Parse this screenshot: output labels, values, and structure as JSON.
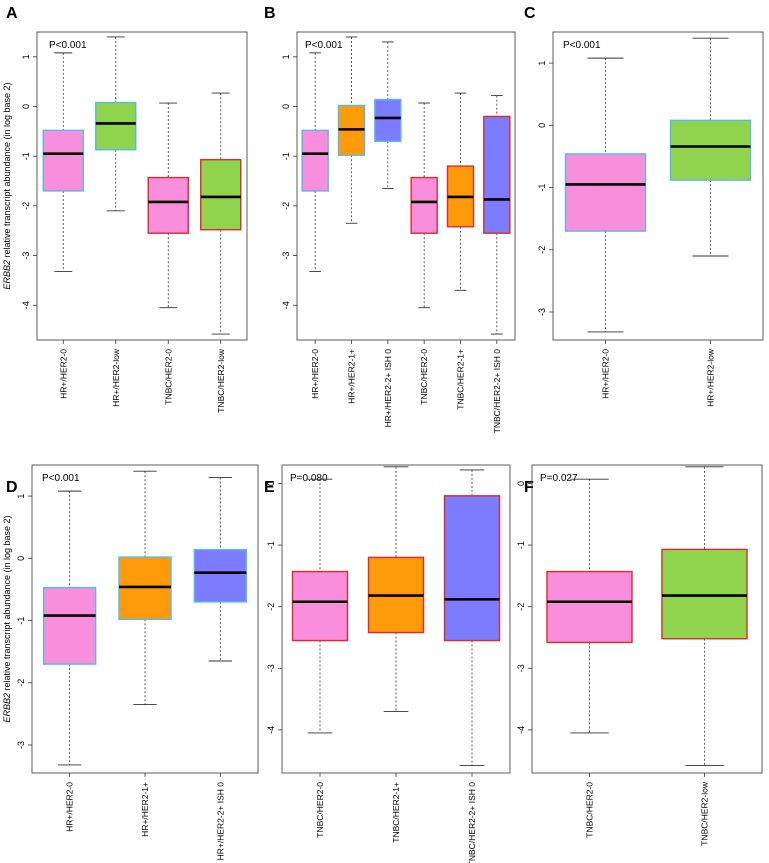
{
  "figure": {
    "ylabel_italic": "ERBB2",
    "ylabel_rest": " relative transcript abundance  (in log base 2)"
  },
  "chart_data": [
    {
      "type": "boxplot",
      "panel": "A",
      "pvalue": "P<0.001",
      "ylim": [
        -4.7,
        1.5
      ],
      "yticks": [
        1,
        0,
        -1,
        -2,
        -3,
        -4
      ],
      "categories": [
        "HR+/HER2-0",
        "HR+/HER2-low",
        "TNBC/HER2-0",
        "TNBC/HER2-low"
      ],
      "boxes": [
        {
          "min": -3.32,
          "q1": -1.7,
          "median": -0.95,
          "q3": -0.48,
          "max": 1.08,
          "fill": "#f98fdc",
          "border": "#56b8ec"
        },
        {
          "min": -2.1,
          "q1": -0.87,
          "median": -0.34,
          "q3": 0.08,
          "max": 1.4,
          "fill": "#8fd44c",
          "border": "#56b8ec"
        },
        {
          "min": -4.05,
          "q1": -2.55,
          "median": -1.92,
          "q3": -1.43,
          "max": 0.07,
          "fill": "#f98fdc",
          "border": "#e0292b"
        },
        {
          "min": -4.58,
          "q1": -2.48,
          "median": -1.82,
          "q3": -1.07,
          "max": 0.27,
          "fill": "#8fd44c",
          "border": "#e0292b"
        }
      ]
    },
    {
      "type": "boxplot",
      "panel": "B",
      "pvalue": "P<0.001",
      "ylim": [
        -4.7,
        1.5
      ],
      "yticks": [
        1,
        0,
        -1,
        -2,
        -3,
        -4
      ],
      "categories": [
        "HR+/HER2-0",
        "HR+/HER2-1+",
        "HR+/HER2-2+ ISH 0",
        "TNBC/HER2-0",
        "TNBC/HER2-1+",
        "TNBC/HER2-2+ ISH 0"
      ],
      "boxes": [
        {
          "min": -3.32,
          "q1": -1.7,
          "median": -0.95,
          "q3": -0.48,
          "max": 1.08,
          "fill": "#f98fdc",
          "border": "#56b8ec"
        },
        {
          "min": -2.35,
          "q1": -0.98,
          "median": -0.46,
          "q3": 0.02,
          "max": 1.4,
          "fill": "#ff9a0a",
          "border": "#56b8ec"
        },
        {
          "min": -1.65,
          "q1": -0.7,
          "median": -0.23,
          "q3": 0.14,
          "max": 1.3,
          "fill": "#7b7cff",
          "border": "#56b8ec"
        },
        {
          "min": -4.05,
          "q1": -2.55,
          "median": -1.92,
          "q3": -1.43,
          "max": 0.07,
          "fill": "#f98fdc",
          "border": "#e0292b"
        },
        {
          "min": -3.7,
          "q1": -2.42,
          "median": -1.82,
          "q3": -1.2,
          "max": 0.27,
          "fill": "#ff9a0a",
          "border": "#e0292b"
        },
        {
          "min": -4.58,
          "q1": -2.55,
          "median": -1.87,
          "q3": -0.2,
          "max": 0.22,
          "fill": "#7b7cff",
          "border": "#e0292b"
        }
      ]
    },
    {
      "type": "boxplot",
      "panel": "C",
      "pvalue": "P<0.001",
      "ylim": [
        -3.45,
        1.5
      ],
      "yticks": [
        1,
        0,
        -1,
        -2,
        -3
      ],
      "categories": [
        "HR+/HER2-0",
        "HR+/HER2-low"
      ],
      "boxes": [
        {
          "min": -3.32,
          "q1": -1.7,
          "median": -0.95,
          "q3": -0.46,
          "max": 1.08,
          "fill": "#f98fdc",
          "border": "#56b8ec"
        },
        {
          "min": -2.1,
          "q1": -0.88,
          "median": -0.34,
          "q3": 0.08,
          "max": 1.4,
          "fill": "#8fd44c",
          "border": "#56b8ec"
        }
      ]
    },
    {
      "type": "boxplot",
      "panel": "D",
      "pvalue": "P<0.001",
      "ylim": [
        -3.45,
        1.5
      ],
      "yticks": [
        1,
        0,
        -1,
        -2,
        -3
      ],
      "categories": [
        "HR+/HER2-0",
        "HR+/HER2-1+",
        "HR+/HER2-2+ ISH 0"
      ],
      "boxes": [
        {
          "min": -3.32,
          "q1": -1.7,
          "median": -0.92,
          "q3": -0.47,
          "max": 1.08,
          "fill": "#f98fdc",
          "border": "#56b8ec"
        },
        {
          "min": -2.35,
          "q1": -0.98,
          "median": -0.46,
          "q3": 0.02,
          "max": 1.4,
          "fill": "#ff9a0a",
          "border": "#56b8ec"
        },
        {
          "min": -1.65,
          "q1": -0.7,
          "median": -0.23,
          "q3": 0.14,
          "max": 1.3,
          "fill": "#7b7cff",
          "border": "#56b8ec"
        }
      ]
    },
    {
      "type": "boxplot",
      "panel": "E",
      "pvalue": "P=0.080",
      "ylim": [
        -4.7,
        0.3
      ],
      "yticks": [
        0,
        -1,
        -2,
        -3,
        -4
      ],
      "categories": [
        "TNBC/HER2-0",
        "TNBC/HER2-1+",
        "TNBC/HER2-2+ ISH 0"
      ],
      "boxes": [
        {
          "min": -4.05,
          "q1": -2.55,
          "median": -1.92,
          "q3": -1.43,
          "max": 0.07,
          "fill": "#f98fdc",
          "border": "#e0292b"
        },
        {
          "min": -3.7,
          "q1": -2.42,
          "median": -1.82,
          "q3": -1.2,
          "max": 0.27,
          "fill": "#ff9a0a",
          "border": "#e0292b"
        },
        {
          "min": -4.58,
          "q1": -2.55,
          "median": -1.88,
          "q3": -0.2,
          "max": 0.22,
          "fill": "#7b7cff",
          "border": "#e0292b"
        }
      ]
    },
    {
      "type": "boxplot",
      "panel": "F",
      "pvalue": "P=0.027",
      "ylim": [
        -4.7,
        0.3
      ],
      "yticks": [
        0,
        -1,
        -2,
        -3,
        -4
      ],
      "categories": [
        "TNBC/HER2-0",
        "TNBC/HER2-low"
      ],
      "boxes": [
        {
          "min": -4.05,
          "q1": -2.58,
          "median": -1.92,
          "q3": -1.43,
          "max": 0.07,
          "fill": "#f98fdc",
          "border": "#e0292b"
        },
        {
          "min": -4.58,
          "q1": -2.52,
          "median": -1.82,
          "q3": -1.07,
          "max": 0.27,
          "fill": "#8fd44c",
          "border": "#e0292b"
        }
      ]
    }
  ]
}
